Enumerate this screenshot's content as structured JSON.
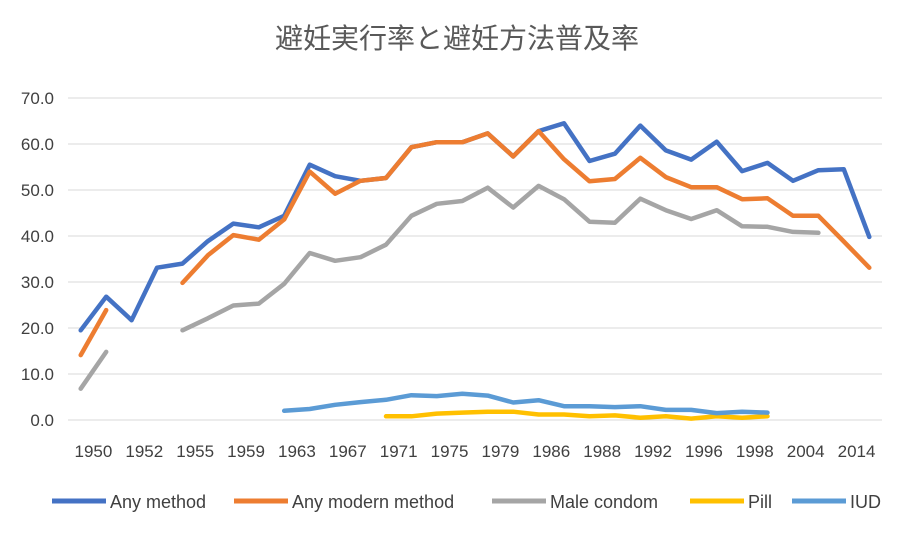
{
  "chart_data": {
    "type": "line",
    "title": "避妊実行率と避妊方法普及率",
    "xlabel": "",
    "ylabel": "",
    "ylim": [
      0,
      70
    ],
    "yticks": [
      "0.0",
      "10.0",
      "20.0",
      "30.0",
      "40.0",
      "50.0",
      "60.0",
      "70.0"
    ],
    "grid": true,
    "legend": "bottom",
    "categories": [
      "1950",
      "1950b",
      "1952",
      "1952b",
      "1955",
      "1955b",
      "1959",
      "1959b",
      "1963",
      "1963b",
      "1967",
      "1967b",
      "1971",
      "1971b",
      "1975",
      "1975b",
      "1979",
      "1979b",
      "1986",
      "1986b",
      "1988",
      "1988b",
      "1992",
      "1992b",
      "1996",
      "1996b",
      "1998",
      "1998b",
      "2004",
      "2004b",
      "2014",
      "2014b"
    ],
    "xtick_labels": [
      "1950",
      "1952",
      "1955",
      "1959",
      "1963",
      "1967",
      "1971",
      "1975",
      "1979",
      "1986",
      "1988",
      "1992",
      "1996",
      "1998",
      "2004",
      "2014"
    ],
    "series": [
      {
        "name": "Any method",
        "color": "#4472C4",
        "values": [
          19.5,
          26.8,
          21.7,
          33.1,
          34.0,
          38.9,
          42.7,
          41.9,
          44.4,
          55.5,
          53.0,
          52.0,
          52.6,
          59.3,
          60.4,
          60.4,
          62.3,
          57.3,
          62.8,
          64.5,
          56.3,
          57.9,
          64.0,
          58.6,
          56.6,
          60.5,
          54.1,
          55.9,
          52.0,
          54.3,
          54.5,
          39.8
        ]
      },
      {
        "name": "Any modern method",
        "color": "#ED7D31",
        "values": [
          14.1,
          23.9,
          null,
          null,
          29.8,
          35.8,
          40.2,
          39.2,
          43.6,
          54.0,
          49.2,
          52.0,
          52.6,
          59.3,
          60.4,
          60.4,
          62.3,
          57.3,
          62.8,
          56.7,
          51.9,
          52.4,
          57.0,
          52.8,
          50.6,
          50.6,
          48.0,
          48.2,
          44.4,
          44.4,
          38.8,
          33.1
        ]
      },
      {
        "name": "Male condom",
        "color": "#A5A5A5",
        "values": [
          6.8,
          14.8,
          null,
          null,
          19.5,
          22.1,
          24.9,
          25.3,
          29.6,
          36.3,
          34.6,
          35.4,
          38.1,
          44.4,
          47.0,
          47.6,
          50.5,
          46.2,
          50.9,
          48.0,
          43.1,
          42.9,
          48.1,
          45.6,
          43.7,
          45.6,
          42.1,
          42.0,
          40.9,
          40.7,
          null,
          null
        ]
      },
      {
        "name": "Pill",
        "color": "#FFC000",
        "values": [
          null,
          null,
          null,
          null,
          null,
          null,
          null,
          null,
          null,
          null,
          null,
          null,
          0.8,
          0.8,
          1.4,
          1.6,
          1.8,
          1.8,
          1.2,
          1.2,
          0.8,
          1.0,
          0.5,
          0.8,
          0.3,
          0.8,
          0.5,
          0.8,
          null,
          null,
          null,
          null
        ]
      },
      {
        "name": "IUD",
        "color": "#5B9BD5",
        "values": [
          null,
          null,
          null,
          null,
          null,
          null,
          null,
          null,
          2.0,
          2.4,
          3.3,
          3.9,
          4.4,
          5.4,
          5.2,
          5.7,
          5.3,
          3.8,
          4.3,
          3.0,
          3.0,
          2.8,
          3.0,
          2.2,
          2.2,
          1.5,
          1.8,
          1.6,
          null,
          null,
          null,
          null
        ]
      }
    ]
  }
}
